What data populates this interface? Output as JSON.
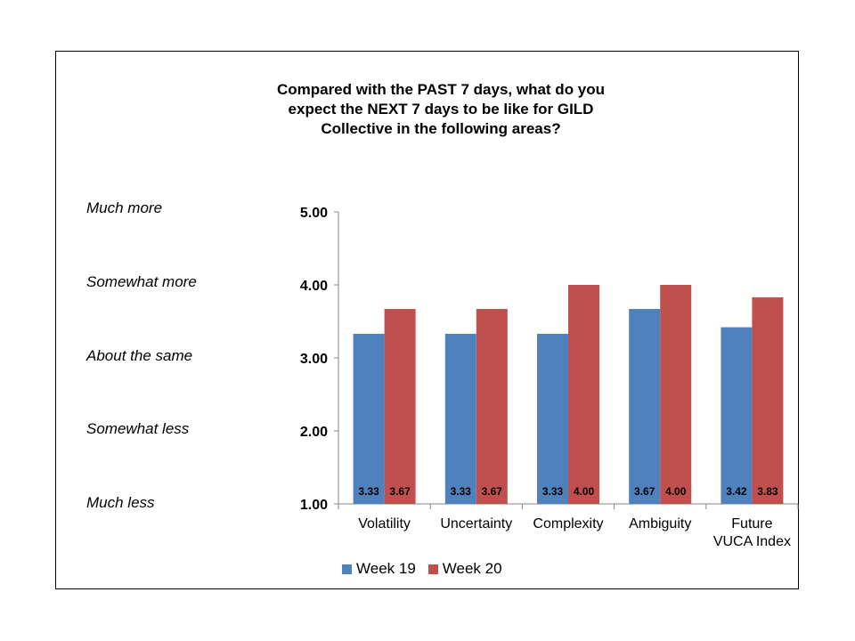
{
  "chart_data": {
    "type": "bar",
    "title_lines": [
      "Compared with the PAST 7 days, what do you",
      "expect the NEXT 7 days to be like for GILD",
      "Collective in the following areas?"
    ],
    "categories": [
      [
        "Volatility"
      ],
      [
        "Uncertainty"
      ],
      [
        "Complexity"
      ],
      [
        "Ambiguity"
      ],
      [
        "Future",
        "VUCA Index"
      ]
    ],
    "series": [
      {
        "name": "Week 19",
        "color": "#4F81BD",
        "values": [
          3.33,
          3.33,
          3.33,
          3.67,
          3.42
        ]
      },
      {
        "name": "Week 20",
        "color": "#C0504D",
        "values": [
          3.67,
          3.67,
          4.0,
          4.0,
          3.83
        ]
      }
    ],
    "yticks": [
      "1.00",
      "2.00",
      "3.00",
      "4.00",
      "5.00"
    ],
    "ylim": [
      1,
      5
    ],
    "scale_labels": [
      "Much less",
      "Somewhat less",
      "About the same",
      "Somewhat more",
      "Much more"
    ],
    "legend_position": "bottom",
    "grid": false
  }
}
